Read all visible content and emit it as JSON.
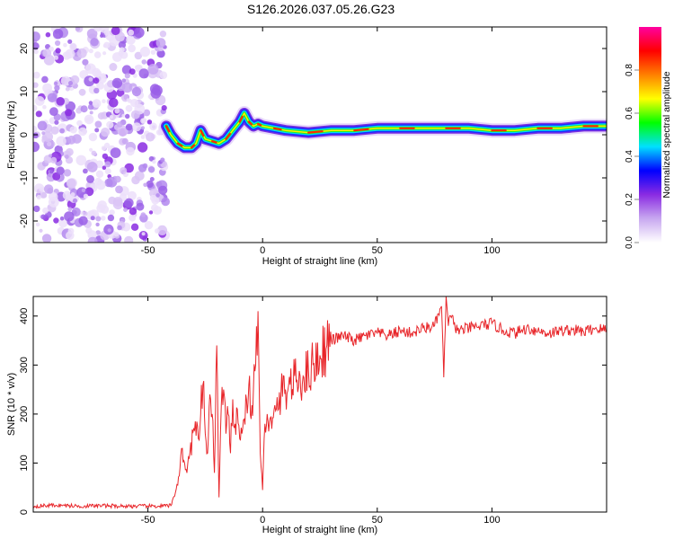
{
  "title": "S126.2026.037.05.26.G23",
  "chart_data": [
    {
      "type": "heatmap",
      "xlabel": "Height of straight line (km)",
      "ylabel": "Frequency (Hz)",
      "xlim": [
        -100,
        150
      ],
      "ylim": [
        -25,
        25
      ],
      "xticks": [
        -50,
        0,
        50,
        100
      ],
      "xtick_labels": [
        "-50",
        "0",
        "50",
        "100"
      ],
      "yticks": [
        -20,
        -10,
        0,
        10,
        20
      ],
      "ytick_labels": [
        "-20",
        "-10",
        "0",
        "10",
        "20"
      ],
      "noise_region_x": [
        -100,
        -42
      ],
      "ridge": {
        "x": [
          -42,
          -40,
          -37,
          -34,
          -31,
          -29,
          -27,
          -25,
          -22,
          -19,
          -16,
          -13,
          -10,
          -8,
          -6,
          -4,
          -2,
          0,
          5,
          10,
          20,
          30,
          40,
          50,
          60,
          70,
          80,
          90,
          100,
          110,
          120,
          130,
          140,
          150
        ],
        "freq": [
          2,
          0,
          -2,
          -3,
          -3,
          -2,
          1,
          -1,
          -1.5,
          -2,
          -1,
          1,
          3,
          5,
          3,
          2,
          2.5,
          2,
          1.5,
          1,
          0.5,
          1,
          1,
          1.5,
          1.5,
          1.5,
          1.5,
          1.5,
          1,
          1,
          1.5,
          1.5,
          2,
          2
        ]
      },
      "colorbar": {
        "label": "Normalized spectral amplitude",
        "ticks": [
          0.0,
          0.2,
          0.4,
          0.6,
          0.8
        ],
        "tick_labels": [
          "0.0",
          "0.2",
          "0.4",
          "0.6",
          "0.8"
        ],
        "range": [
          0,
          1
        ],
        "colors": [
          "#ffffff",
          "#c8a8f0",
          "#8a2be2",
          "#0000ff",
          "#00e0ff",
          "#00ff00",
          "#ffff00",
          "#ff8000",
          "#ff0000",
          "#ff00a0"
        ]
      }
    },
    {
      "type": "line",
      "xlabel": "Height of straight line (km)",
      "ylabel": "SNR (10 * v/v)",
      "xlim": [
        -100,
        150
      ],
      "ylim": [
        0,
        440
      ],
      "xticks": [
        -50,
        0,
        50,
        100
      ],
      "xtick_labels": [
        "-50",
        "0",
        "50",
        "100"
      ],
      "yticks": [
        0,
        100,
        200,
        300,
        400
      ],
      "ytick_labels": [
        "0",
        "100",
        "200",
        "300",
        "400"
      ],
      "color": "#e8262a",
      "series": [
        {
          "name": "SNR",
          "x": [
            -100,
            -90,
            -80,
            -70,
            -60,
            -50,
            -45,
            -40,
            -38,
            -36,
            -35,
            -34,
            -33,
            -32,
            -30,
            -28,
            -27,
            -26,
            -25,
            -24,
            -23,
            -22,
            -21,
            -20,
            -19,
            -18,
            -17,
            -16,
            -15,
            -14,
            -13,
            -12,
            -11,
            -10,
            -9,
            -8,
            -7,
            -6,
            -5,
            -4,
            -3,
            -2,
            -1,
            0,
            1,
            2,
            4,
            6,
            8,
            10,
            12,
            15,
            18,
            20,
            22,
            25,
            28,
            30,
            35,
            40,
            45,
            50,
            55,
            60,
            65,
            70,
            75,
            78,
            79,
            80,
            81,
            82,
            85,
            90,
            95,
            100,
            105,
            110,
            115,
            120,
            125,
            130,
            135,
            140,
            145,
            150
          ],
          "values": [
            12,
            14,
            12,
            13,
            12,
            12,
            12,
            13,
            40,
            90,
            130,
            100,
            80,
            110,
            170,
            150,
            200,
            260,
            160,
            120,
            240,
            200,
            80,
            340,
            30,
            220,
            250,
            160,
            200,
            120,
            230,
            180,
            210,
            150,
            160,
            190,
            230,
            260,
            190,
            250,
            300,
            410,
            120,
            45,
            180,
            200,
            170,
            210,
            240,
            250,
            260,
            270,
            275,
            290,
            300,
            320,
            340,
            350,
            360,
            350,
            360,
            365,
            360,
            370,
            365,
            375,
            380,
            420,
            275,
            440,
            380,
            400,
            370,
            375,
            380,
            385,
            370,
            365,
            375,
            370,
            365,
            370,
            372,
            368,
            375,
            372
          ]
        }
      ]
    }
  ]
}
